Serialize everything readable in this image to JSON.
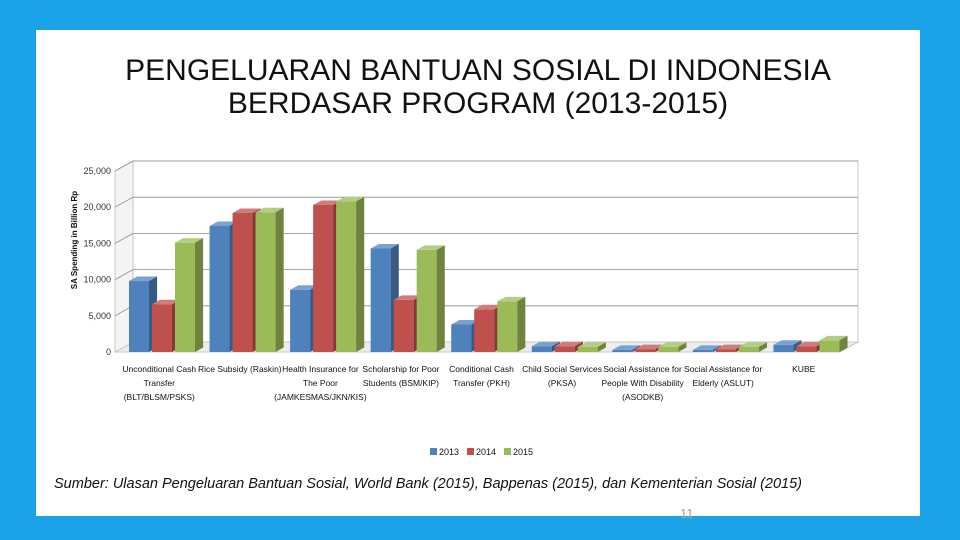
{
  "slide": {
    "title_line1": "PENGELUARAN BANTUAN SOSIAL DI INDONESIA",
    "title_line2": "BERDASAR PROGRAM (2013-2015)",
    "source": "Sumber: Ulasan Pengeluaran Bantuan Sosial, World Bank (2015), Bappenas (2015), dan Kementerian Sosial (2015)",
    "page_number": "11"
  },
  "colors": {
    "background": "#1aa3e8",
    "series_2013": "#4f81bd",
    "series_2014": "#c0504d",
    "series_2015": "#9bbb59"
  },
  "chart_data": {
    "type": "bar",
    "title": "",
    "xlabel": "",
    "ylabel": "SA Spending in Billion Rp",
    "ylim": [
      0,
      25000
    ],
    "yticks": [
      "0",
      "5,000",
      "10,000",
      "15,000",
      "20,000",
      "25,000"
    ],
    "grid": true,
    "legend_position": "bottom",
    "categories": [
      [
        "Unconditional Cash",
        "Transfer",
        "(BLT/BLSM/PSKS)"
      ],
      [
        "Rice Subsidy (Raskin)"
      ],
      [
        "Health Insurance for",
        "The Poor",
        "(JAMKESMAS/JKN/KIS)"
      ],
      [
        "Scholarship for Poor",
        "Students (BSM/KIP)"
      ],
      [
        "Conditional Cash",
        "Transfer (PKH)"
      ],
      [
        "Child Social Services",
        "(PKSA)"
      ],
      [
        "Social Assistance for",
        "People With Disability",
        "(ASODKB)"
      ],
      [
        "Social Assistance for",
        "Elderly (ASLUT)"
      ],
      [
        "KUBE"
      ]
    ],
    "series": [
      {
        "name": "2013",
        "values": [
          9800,
          17400,
          8600,
          14300,
          3800,
          800,
          300,
          300,
          1000
        ]
      },
      {
        "name": "2014",
        "values": [
          6600,
          19200,
          20300,
          7200,
          5900,
          800,
          400,
          400,
          800
        ]
      },
      {
        "name": "2015",
        "values": [
          15100,
          19300,
          20800,
          14100,
          7000,
          700,
          700,
          700,
          1600
        ]
      }
    ]
  }
}
